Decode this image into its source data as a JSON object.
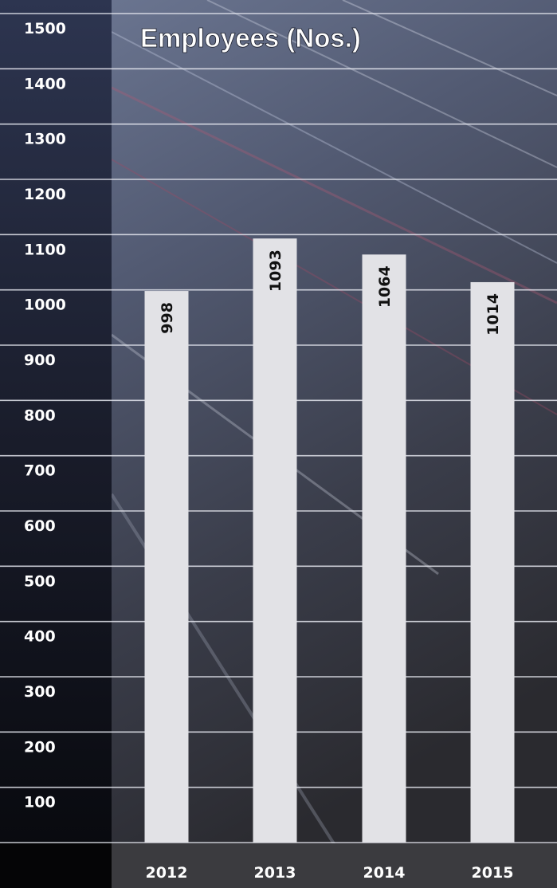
{
  "chart_data": {
    "type": "bar",
    "title": "Employees (Nos.)",
    "categories": [
      "2012",
      "2013",
      "2014",
      "2015"
    ],
    "values": [
      998,
      1093,
      1064,
      1014
    ],
    "value_labels": [
      "998",
      "1093",
      "1064",
      "1014"
    ],
    "yticks": [
      "100",
      "200",
      "300",
      "400",
      "500",
      "600",
      "700",
      "800",
      "900",
      "1000",
      "1100",
      "1200",
      "1300",
      "1400",
      "1500"
    ],
    "ylim": [
      0,
      1500
    ],
    "grid": true,
    "colors": {
      "bar": "#e2e2e6",
      "grid": "#e6e8f0",
      "text": "#ffffff",
      "value_text": "#111111",
      "background_top": "#6a7592",
      "background_bottom": "#2b2b30",
      "axis_strip": "#0d0f16",
      "xaxis_band": "#3b3b3f"
    }
  }
}
